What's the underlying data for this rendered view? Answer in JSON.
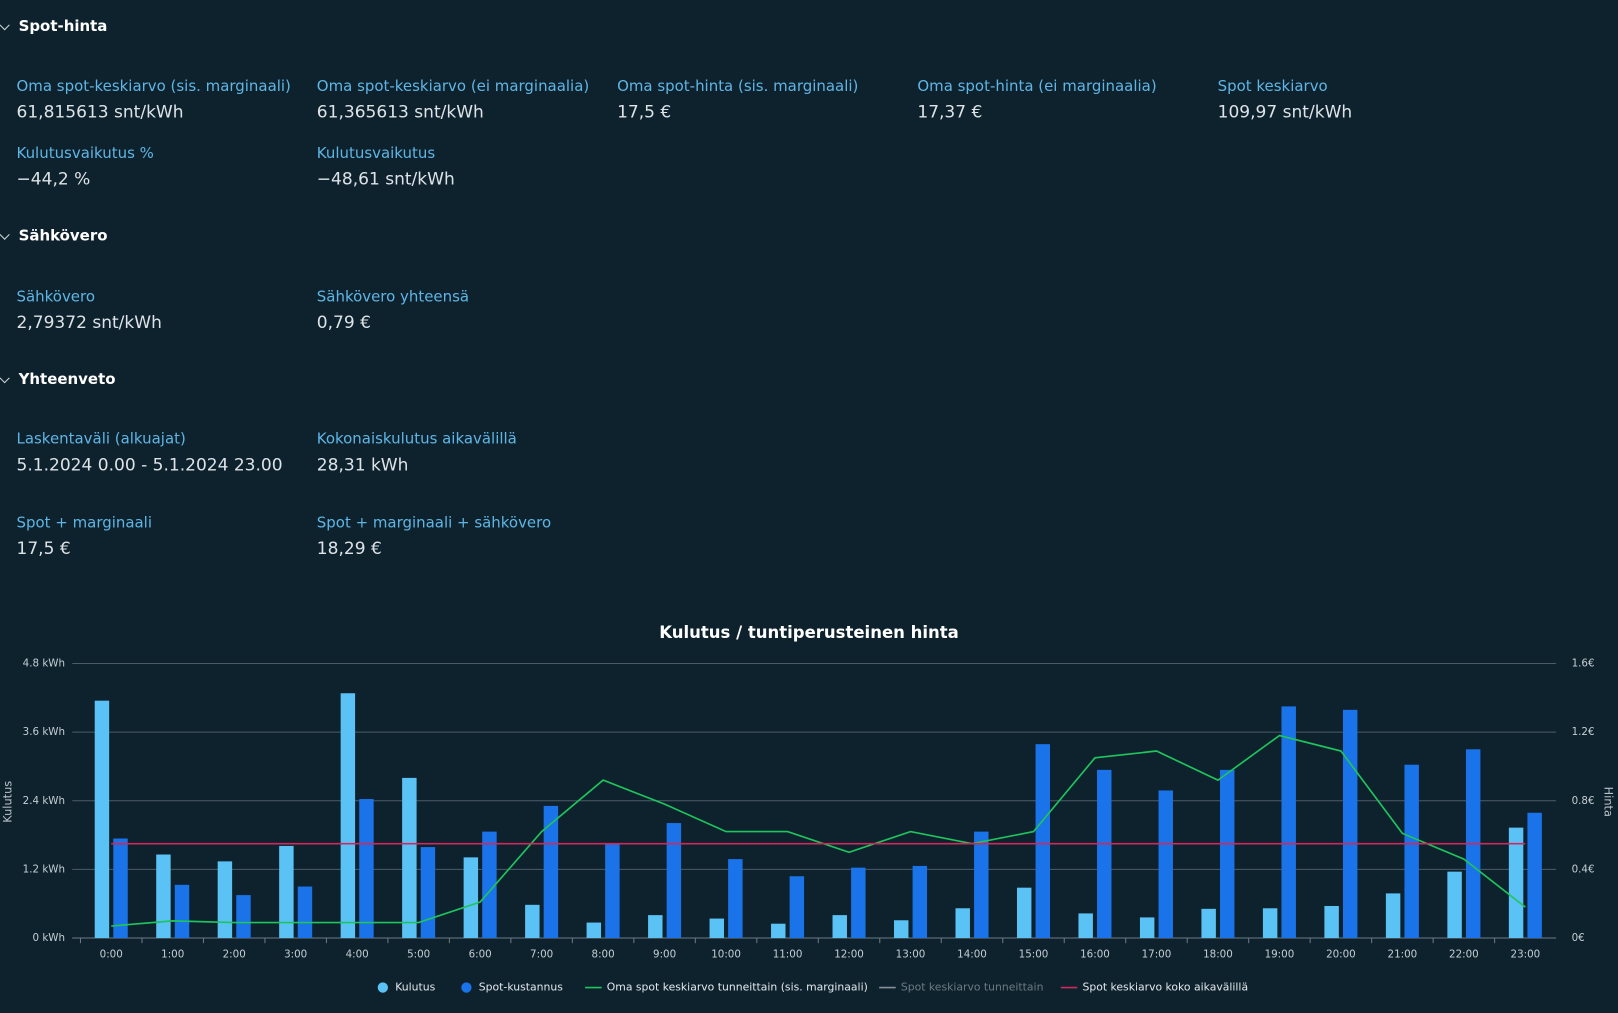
{
  "sections": [
    {
      "title": "Spot-hinta",
      "rows": [
        [
          {
            "label": "Oma spot-keskiarvo (sis. marginaali)",
            "value": "61,815613 snt/kWh"
          },
          {
            "label": "Oma spot-keskiarvo (ei marginaalia)",
            "value": "61,365613 snt/kWh"
          },
          {
            "label": "Oma spot-hinta (sis. marginaali)",
            "value": "17,5 €"
          },
          {
            "label": "Oma spot-hinta (ei marginaalia)",
            "value": "17,37 €"
          },
          {
            "label": "Spot keskiarvo",
            "value": "109,97 snt/kWh"
          }
        ],
        [
          {
            "label": "Kulutusvaikutus %",
            "value": "−44,2 %"
          },
          {
            "label": "Kulutusvaikutus",
            "value": "−48,61 snt/kWh"
          }
        ]
      ]
    },
    {
      "title": "Sähkövero",
      "rows": [
        [
          {
            "label": "Sähkövero",
            "value": "2,79372 snt/kWh"
          },
          {
            "label": "Sähkövero yhteensä",
            "value": "0,79 €"
          }
        ]
      ]
    },
    {
      "title": "Yhteenveto",
      "rows": [
        [
          {
            "label": "Laskentaväli (alkuajat)",
            "value": "5.1.2024 0.00 - 5.1.2024 23.00"
          },
          {
            "label": "Kokonaiskulutus aikavälillä",
            "value": "28,31 kWh"
          }
        ],
        [
          {
            "label": "Spot + marginaali",
            "value": "17,5 €"
          },
          {
            "label": "Spot + marginaali + sähkövero",
            "value": "18,29 €"
          }
        ]
      ]
    }
  ],
  "chart_data": {
    "type": "bar",
    "title": "Kulutus / tuntiperusteinen hinta",
    "ylabel": "Kulutus",
    "y2label": "Hinta",
    "categories": [
      "0:00",
      "1:00",
      "2:00",
      "3:00",
      "4:00",
      "5:00",
      "6:00",
      "7:00",
      "8:00",
      "9:00",
      "10:00",
      "11:00",
      "12:00",
      "13:00",
      "14:00",
      "15:00",
      "16:00",
      "17:00",
      "18:00",
      "19:00",
      "20:00",
      "21:00",
      "22:00",
      "23:00"
    ],
    "ylim": [
      0,
      4.8
    ],
    "yticks": [
      {
        "value": 0,
        "label": "0 kWh"
      },
      {
        "value": 1.2,
        "label": "1.2 kWh"
      },
      {
        "value": 2.4,
        "label": "2.4 kWh"
      },
      {
        "value": 3.6,
        "label": "3.6 kWh"
      },
      {
        "value": 4.8,
        "label": "4.8 kWh"
      }
    ],
    "y2lim": [
      0,
      1.6
    ],
    "y2ticks": [
      {
        "value": 0,
        "label": "0€"
      },
      {
        "value": 0.4,
        "label": "0.4€"
      },
      {
        "value": 0.8,
        "label": "0.8€"
      },
      {
        "value": 1.2,
        "label": "1.2€"
      },
      {
        "value": 1.6,
        "label": "1.6€"
      }
    ],
    "grid": true,
    "legend": "bottom",
    "series": [
      {
        "name": "Kulutus",
        "type": "bar",
        "color": "#5bc2f5",
        "values": [
          4.15,
          1.46,
          1.34,
          1.61,
          4.28,
          2.8,
          1.41,
          0.58,
          0.27,
          0.4,
          0.34,
          0.25,
          0.4,
          0.31,
          0.52,
          0.88,
          0.43,
          0.36,
          0.51,
          0.52,
          0.56,
          0.78,
          1.16,
          1.93
        ]
      },
      {
        "name": "Spot-kustannus",
        "type": "bar",
        "axis": "y2",
        "color": "#1a73e8",
        "values": [
          0.58,
          0.31,
          0.25,
          0.3,
          0.81,
          0.53,
          0.62,
          0.77,
          0.55,
          0.67,
          0.46,
          0.36,
          0.41,
          0.42,
          0.62,
          1.13,
          0.98,
          0.86,
          0.98,
          1.35,
          1.33,
          1.01,
          1.1,
          0.73
        ]
      },
      {
        "name": "Oma spot keskiarvo tunneittain (sis. marginaali)",
        "type": "line",
        "axis": "y2",
        "color": "#1fc55c",
        "values": [
          0.07,
          0.1,
          0.09,
          0.09,
          0.09,
          0.09,
          0.21,
          0.62,
          0.92,
          0.78,
          0.62,
          0.62,
          0.5,
          0.62,
          0.55,
          0.62,
          1.05,
          1.09,
          0.92,
          1.18,
          1.09,
          0.61,
          0.46,
          0.18
        ]
      },
      {
        "name": "Spot keskiarvo tunneittain",
        "type": "line",
        "axis": "y2",
        "color": "#8a8f94",
        "hidden": true,
        "values": [
          null,
          null,
          null,
          null,
          null,
          null,
          null,
          null,
          null,
          null,
          null,
          null,
          null,
          null,
          null,
          null,
          null,
          null,
          null,
          null,
          null,
          null,
          null,
          null
        ]
      },
      {
        "name": "Spot keskiarvo koko aikavälillä",
        "type": "line",
        "axis": "y2",
        "color": "#d0285c",
        "values": [
          0.55,
          0.55,
          0.55,
          0.55,
          0.55,
          0.55,
          0.55,
          0.55,
          0.55,
          0.55,
          0.55,
          0.55,
          0.55,
          0.55,
          0.55,
          0.55,
          0.55,
          0.55,
          0.55,
          0.55,
          0.55,
          0.55,
          0.55,
          0.55
        ]
      }
    ]
  }
}
